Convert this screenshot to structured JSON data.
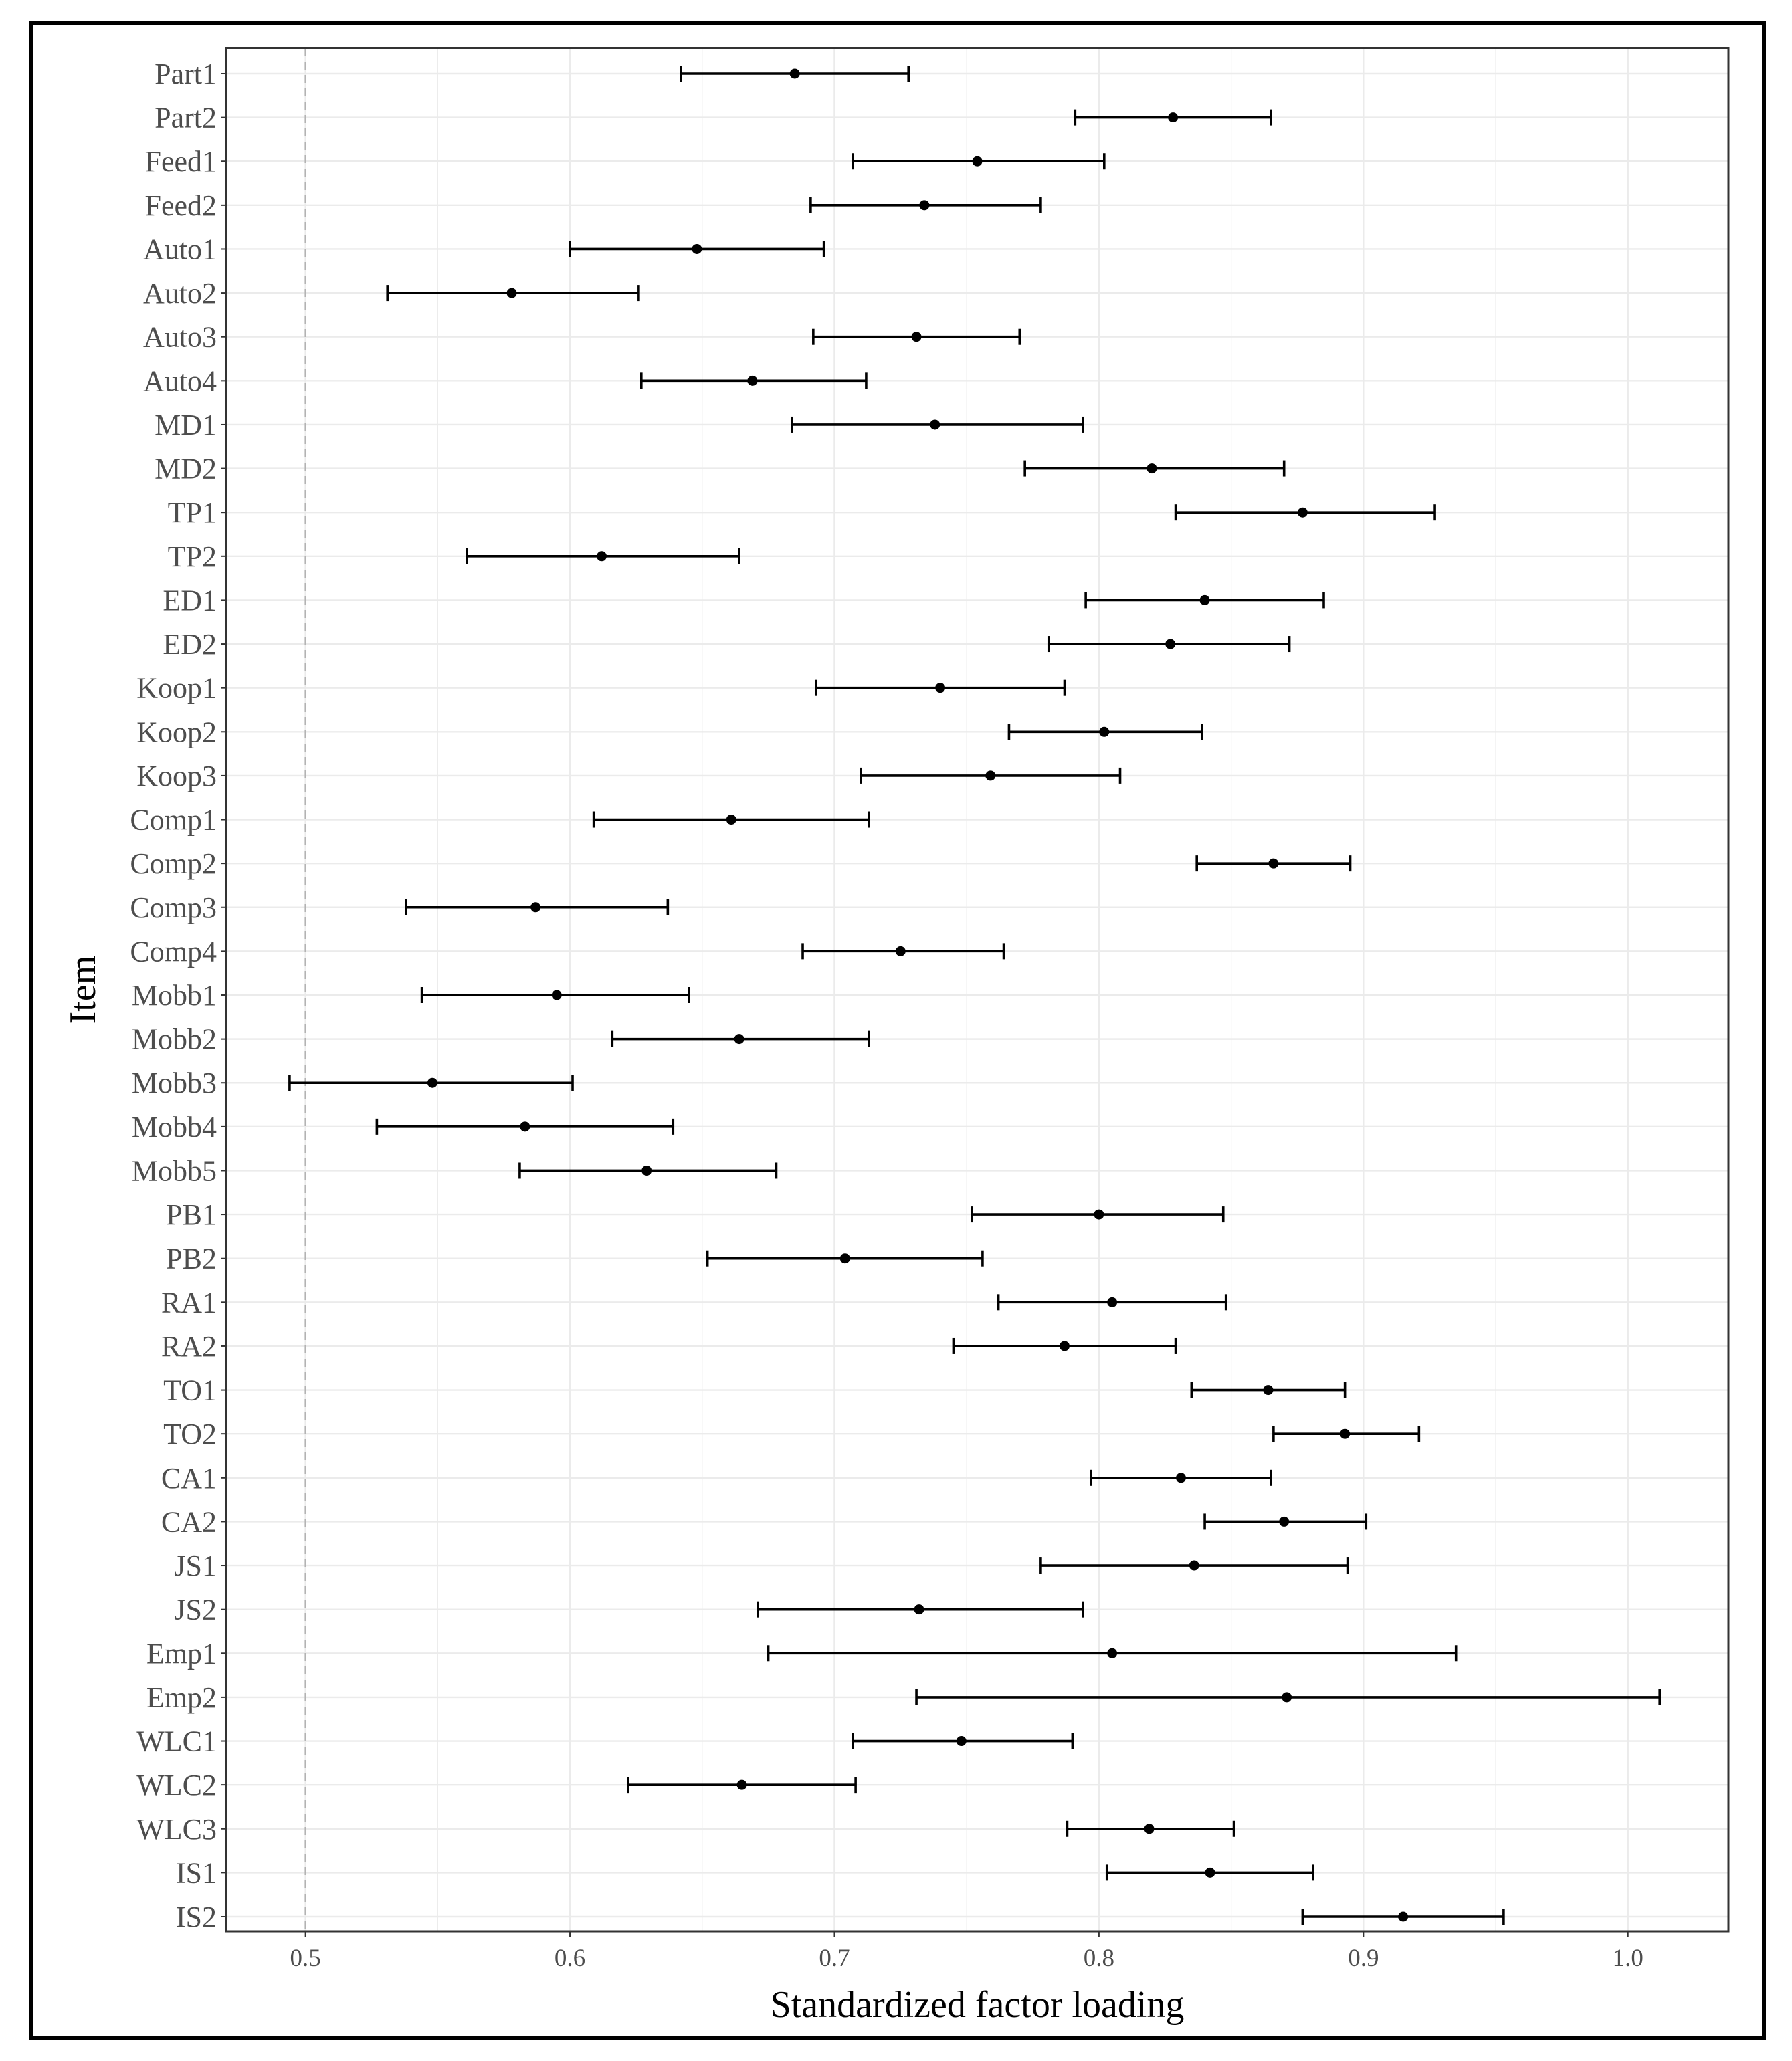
{
  "chart_data": {
    "type": "forest",
    "xlabel": "Standardized factor loading",
    "ylabel": "Item",
    "xlim": [
      0.47,
      1.038
    ],
    "xticks": [
      0.5,
      0.6,
      0.7,
      0.8,
      0.9,
      1.0
    ],
    "xtick_labels": [
      "0.5",
      "0.6",
      "0.7",
      "0.8",
      "0.9",
      "1.0"
    ],
    "reference_line": 0.5,
    "grid": true,
    "items": [
      {
        "label": "Part1",
        "estimate": 0.685,
        "lower": 0.642,
        "upper": 0.728
      },
      {
        "label": "Part2",
        "estimate": 0.828,
        "lower": 0.791,
        "upper": 0.865
      },
      {
        "label": "Feed1",
        "estimate": 0.754,
        "lower": 0.707,
        "upper": 0.802
      },
      {
        "label": "Feed2",
        "estimate": 0.734,
        "lower": 0.691,
        "upper": 0.778
      },
      {
        "label": "Auto1",
        "estimate": 0.648,
        "lower": 0.6,
        "upper": 0.696
      },
      {
        "label": "Auto2",
        "estimate": 0.578,
        "lower": 0.531,
        "upper": 0.626
      },
      {
        "label": "Auto3",
        "estimate": 0.731,
        "lower": 0.692,
        "upper": 0.77
      },
      {
        "label": "Auto4",
        "estimate": 0.669,
        "lower": 0.627,
        "upper": 0.712
      },
      {
        "label": "MD1",
        "estimate": 0.738,
        "lower": 0.684,
        "upper": 0.794
      },
      {
        "label": "MD2",
        "estimate": 0.82,
        "lower": 0.772,
        "upper": 0.87
      },
      {
        "label": "TP1",
        "estimate": 0.877,
        "lower": 0.829,
        "upper": 0.927
      },
      {
        "label": "TP2",
        "estimate": 0.612,
        "lower": 0.561,
        "upper": 0.664
      },
      {
        "label": "ED1",
        "estimate": 0.84,
        "lower": 0.795,
        "upper": 0.885
      },
      {
        "label": "ED2",
        "estimate": 0.827,
        "lower": 0.781,
        "upper": 0.872
      },
      {
        "label": "Koop1",
        "estimate": 0.74,
        "lower": 0.693,
        "upper": 0.787
      },
      {
        "label": "Koop2",
        "estimate": 0.802,
        "lower": 0.766,
        "upper": 0.839
      },
      {
        "label": "Koop3",
        "estimate": 0.759,
        "lower": 0.71,
        "upper": 0.808
      },
      {
        "label": "Comp1",
        "estimate": 0.661,
        "lower": 0.609,
        "upper": 0.713
      },
      {
        "label": "Comp2",
        "estimate": 0.866,
        "lower": 0.837,
        "upper": 0.895
      },
      {
        "label": "Comp3",
        "estimate": 0.587,
        "lower": 0.538,
        "upper": 0.637
      },
      {
        "label": "Comp4",
        "estimate": 0.725,
        "lower": 0.688,
        "upper": 0.764
      },
      {
        "label": "Mobb1",
        "estimate": 0.595,
        "lower": 0.544,
        "upper": 0.645
      },
      {
        "label": "Mobb2",
        "estimate": 0.664,
        "lower": 0.616,
        "upper": 0.713
      },
      {
        "label": "Mobb3",
        "estimate": 0.548,
        "lower": 0.494,
        "upper": 0.601
      },
      {
        "label": "Mobb4",
        "estimate": 0.583,
        "lower": 0.527,
        "upper": 0.639
      },
      {
        "label": "Mobb5",
        "estimate": 0.629,
        "lower": 0.581,
        "upper": 0.678
      },
      {
        "label": "PB1",
        "estimate": 0.8,
        "lower": 0.752,
        "upper": 0.847
      },
      {
        "label": "PB2",
        "estimate": 0.704,
        "lower": 0.652,
        "upper": 0.756
      },
      {
        "label": "RA1",
        "estimate": 0.805,
        "lower": 0.762,
        "upper": 0.848
      },
      {
        "label": "RA2",
        "estimate": 0.787,
        "lower": 0.745,
        "upper": 0.829
      },
      {
        "label": "TO1",
        "estimate": 0.864,
        "lower": 0.835,
        "upper": 0.893
      },
      {
        "label": "TO2",
        "estimate": 0.893,
        "lower": 0.866,
        "upper": 0.921
      },
      {
        "label": "CA1",
        "estimate": 0.831,
        "lower": 0.797,
        "upper": 0.865
      },
      {
        "label": "CA2",
        "estimate": 0.87,
        "lower": 0.84,
        "upper": 0.901
      },
      {
        "label": "JS1",
        "estimate": 0.836,
        "lower": 0.778,
        "upper": 0.894
      },
      {
        "label": "JS2",
        "estimate": 0.732,
        "lower": 0.671,
        "upper": 0.794
      },
      {
        "label": "Emp1",
        "estimate": 0.805,
        "lower": 0.675,
        "upper": 0.935
      },
      {
        "label": "Emp2",
        "estimate": 0.871,
        "lower": 0.731,
        "upper": 1.012
      },
      {
        "label": "WLC1",
        "estimate": 0.748,
        "lower": 0.707,
        "upper": 0.79
      },
      {
        "label": "WLC2",
        "estimate": 0.665,
        "lower": 0.622,
        "upper": 0.708
      },
      {
        "label": "WLC3",
        "estimate": 0.819,
        "lower": 0.788,
        "upper": 0.851
      },
      {
        "label": "IS1",
        "estimate": 0.842,
        "lower": 0.803,
        "upper": 0.881
      },
      {
        "label": "IS2",
        "estimate": 0.915,
        "lower": 0.877,
        "upper": 0.953
      }
    ]
  }
}
